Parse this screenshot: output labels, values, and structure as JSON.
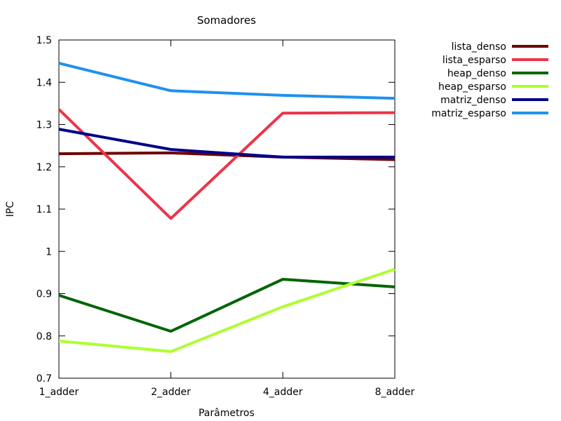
{
  "chart_data": {
    "type": "line",
    "title": "Somadores",
    "xlabel": "Parâmetros",
    "ylabel": "IPC",
    "categories": [
      "1_adder",
      "2_adder",
      "4_adder",
      "8_adder"
    ],
    "ylim": [
      0.7,
      1.5
    ],
    "yticks": [
      "0.7",
      "0.8",
      "0.9",
      "1",
      "1.1",
      "1.2",
      "1.3",
      "1.4",
      "1.5"
    ],
    "grid": false,
    "legend_position": "top-right outside plot",
    "series": [
      {
        "name": "lista_denso",
        "color": "#6e0000",
        "values": [
          1.231,
          1.233,
          1.223,
          1.217
        ]
      },
      {
        "name": "lista_esparso",
        "color": "#ee3349",
        "values": [
          1.336,
          1.078,
          1.327,
          1.328
        ]
      },
      {
        "name": "heap_denso",
        "color": "#006400",
        "values": [
          0.896,
          0.811,
          0.934,
          0.916
        ]
      },
      {
        "name": "heap_esparso",
        "color": "#adff2f",
        "values": [
          0.788,
          0.763,
          0.869,
          0.958
        ]
      },
      {
        "name": "matriz_denso",
        "color": "#00008b",
        "values": [
          1.289,
          1.241,
          1.223,
          1.223
        ]
      },
      {
        "name": "matriz_esparso",
        "color": "#2090f0",
        "values": [
          1.445,
          1.38,
          1.369,
          1.362
        ]
      }
    ]
  }
}
